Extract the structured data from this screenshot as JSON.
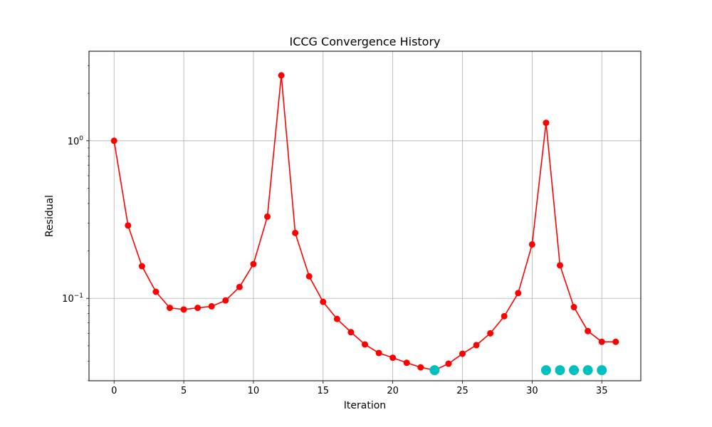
{
  "chart_data": {
    "type": "line",
    "title": "ICCG Convergence History",
    "xlabel": "Iteration",
    "ylabel": "Residual",
    "yscale": "log",
    "xlim": [
      -1.8,
      37.8
    ],
    "ylim": [
      0.03,
      3.7
    ],
    "grid": true,
    "x_ticks": [
      {
        "value": 0,
        "label": "0"
      },
      {
        "value": 5,
        "label": "5"
      },
      {
        "value": 10,
        "label": "10"
      },
      {
        "value": 15,
        "label": "15"
      },
      {
        "value": 20,
        "label": "20"
      },
      {
        "value": 25,
        "label": "25"
      },
      {
        "value": 30,
        "label": "30"
      },
      {
        "value": 35,
        "label": "35"
      }
    ],
    "y_ticks": [
      {
        "value": 1,
        "base": "10",
        "exp": "0"
      },
      {
        "value": 0.1,
        "base": "10",
        "exp": "−1"
      }
    ],
    "series": [
      {
        "color": "#ff0000",
        "marker": "circle",
        "x": [
          0,
          1,
          2,
          3,
          4,
          5,
          6,
          7,
          8,
          9,
          10,
          11,
          12,
          13,
          14,
          15,
          16,
          17,
          18,
          19,
          20,
          21,
          22,
          23,
          24,
          25,
          26,
          27,
          28,
          29,
          30,
          31,
          32,
          33,
          34,
          35,
          36
        ],
        "values": [
          1.0,
          0.29,
          0.16,
          0.11,
          0.087,
          0.085,
          0.087,
          0.089,
          0.097,
          0.118,
          0.165,
          0.33,
          2.6,
          0.26,
          0.138,
          0.095,
          0.074,
          0.061,
          0.051,
          0.045,
          0.042,
          0.039,
          0.0365,
          0.035,
          0.0385,
          0.0445,
          0.0505,
          0.06,
          0.077,
          0.108,
          0.22,
          1.3,
          0.162,
          0.088,
          0.062,
          0.053,
          0.053
        ]
      },
      {
        "color": "#00bfbf",
        "marker": "large-circle",
        "x": [
          23,
          31,
          32,
          33,
          34,
          35
        ],
        "values": [
          0.035,
          0.035,
          0.035,
          0.035,
          0.035,
          0.035
        ]
      }
    ]
  }
}
